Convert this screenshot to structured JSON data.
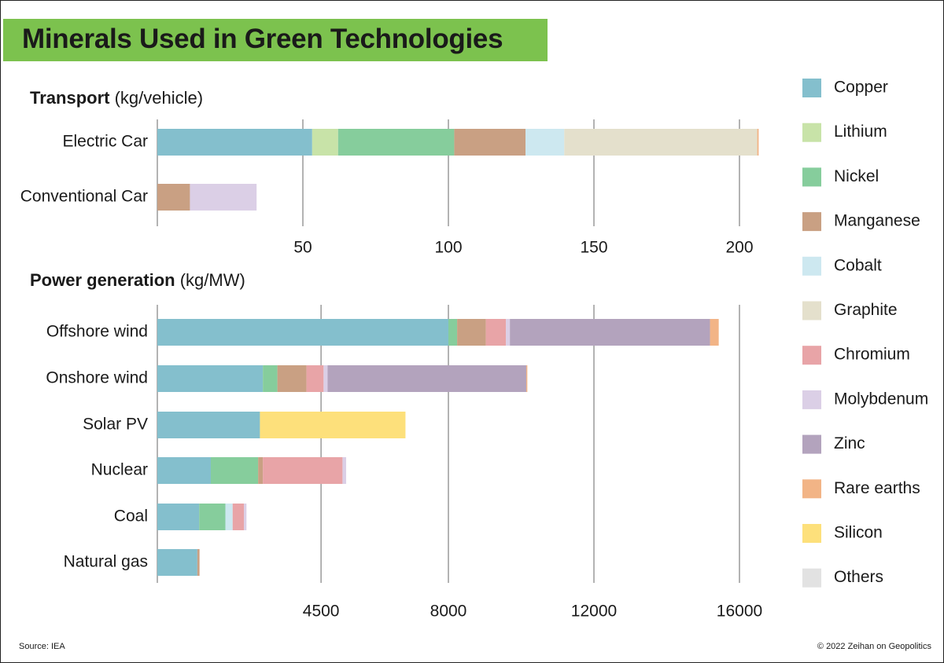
{
  "page": {
    "title": "Minerals Used in Green Technologies",
    "source": "Source: IEA",
    "credit": "© 2022 Zeihan on Geopolitics"
  },
  "colors": {
    "title_band": "#7cc24e",
    "gridline": "#9a9a9a",
    "minerals": {
      "Copper": "#84bfcd",
      "Lithium": "#c8e3a8",
      "Nickel": "#86cd9c",
      "Manganese": "#c9a083",
      "Cobalt": "#cde8f0",
      "Graphite": "#e4e0cc",
      "Chromium": "#e8a4a7",
      "Molybdenum": "#dbcfe6",
      "Zinc": "#b3a3bd",
      "Rare earths": "#f2b486",
      "Silicon": "#fde07b",
      "Others": "#e2e2e2"
    }
  },
  "legend": [
    "Copper",
    "Lithium",
    "Nickel",
    "Manganese",
    "Cobalt",
    "Graphite",
    "Chromium",
    "Molybdenum",
    "Zinc",
    "Rare earths",
    "Silicon",
    "Others"
  ],
  "chart_data": [
    {
      "type": "bar",
      "orientation": "horizontal",
      "stacked": true,
      "title": "Transport",
      "unit": "(kg/vehicle)",
      "xlim": [
        0,
        208
      ],
      "xticks": [
        50,
        100,
        150,
        200
      ],
      "grid": true,
      "legend_position": "right",
      "categories": [
        "Electric Car",
        "Conventional Car"
      ],
      "series": [
        {
          "name": "Copper",
          "values": [
            53.2,
            0
          ]
        },
        {
          "name": "Lithium",
          "values": [
            8.9,
            0
          ]
        },
        {
          "name": "Nickel",
          "values": [
            39.9,
            0
          ]
        },
        {
          "name": "Manganese",
          "values": [
            24.5,
            11.2
          ]
        },
        {
          "name": "Cobalt",
          "values": [
            13.3,
            0
          ]
        },
        {
          "name": "Graphite",
          "values": [
            66.3,
            0
          ]
        },
        {
          "name": "Molybdenum",
          "values": [
            0,
            22.9
          ]
        },
        {
          "name": "Rare earths",
          "values": [
            0.5,
            0
          ]
        }
      ]
    },
    {
      "type": "bar",
      "orientation": "horizontal",
      "stacked": true,
      "title": "Power generation",
      "unit": "(kg/MW)",
      "xlim": [
        0,
        16000
      ],
      "xticks": [
        4500,
        8000,
        12000,
        16000
      ],
      "grid": true,
      "legend_position": "right",
      "categories": [
        "Offshore wind",
        "Onshore wind",
        "Solar PV",
        "Nuclear",
        "Coal",
        "Natural gas"
      ],
      "series": [
        {
          "name": "Copper",
          "values": [
            8000,
            2900,
            2820,
            1470,
            1150,
            1100
          ]
        },
        {
          "name": "Nickel",
          "values": [
            240,
            400,
            0,
            1300,
            720,
            0
          ]
        },
        {
          "name": "Manganese",
          "values": [
            790,
            800,
            0,
            130,
            0,
            60
          ]
        },
        {
          "name": "Cobalt",
          "values": [
            0,
            0,
            0,
            0,
            200,
            0
          ]
        },
        {
          "name": "Chromium",
          "values": [
            550,
            470,
            0,
            2190,
            310,
            0
          ]
        },
        {
          "name": "Molybdenum",
          "values": [
            110,
            110,
            0,
            100,
            70,
            0
          ]
        },
        {
          "name": "Zinc",
          "values": [
            5500,
            5460,
            0,
            0,
            0,
            0
          ]
        },
        {
          "name": "Rare earths",
          "values": [
            240,
            30,
            0,
            0,
            0,
            0
          ]
        },
        {
          "name": "Silicon",
          "values": [
            0,
            0,
            4000,
            0,
            0,
            0
          ]
        }
      ]
    }
  ]
}
